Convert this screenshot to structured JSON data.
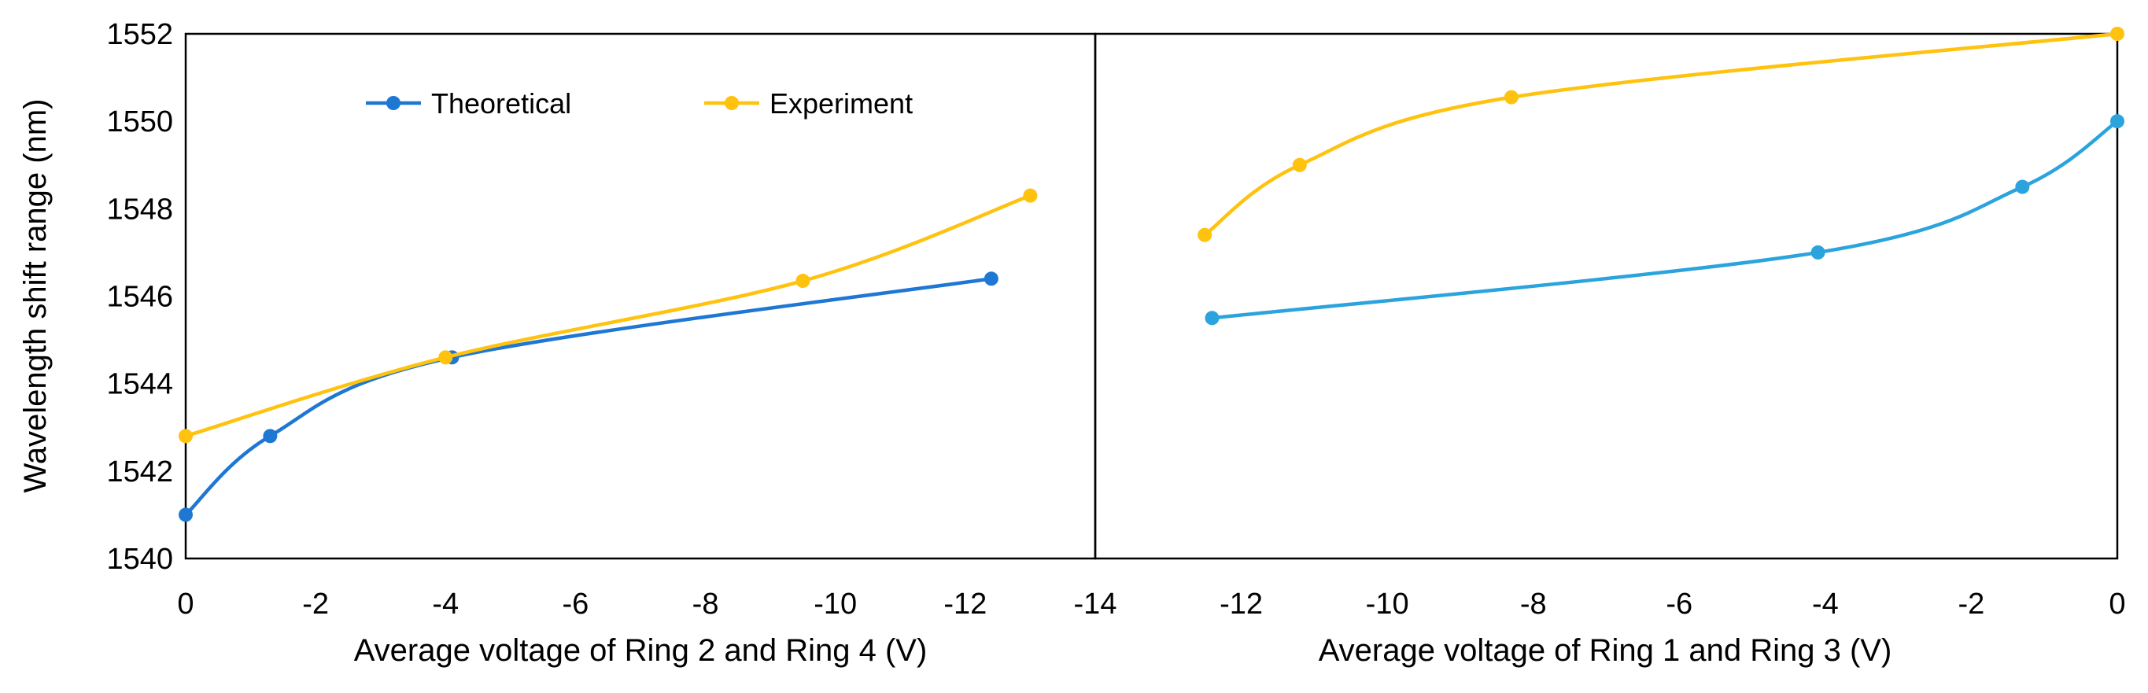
{
  "chart_data": {
    "type": "line",
    "ylabel": "Wavelength shift range (nm)",
    "ylim": [
      1540,
      1552
    ],
    "yticks": [
      "1540",
      "1542",
      "1544",
      "1546",
      "1548",
      "1550",
      "1552"
    ],
    "colors": {
      "theoretical_left": "#1f77d4",
      "theoretical_right": "#2ba3dd",
      "experiment": "#ffc20e"
    },
    "legend": [
      {
        "name": "Theoretical",
        "color": "#1f77d4"
      },
      {
        "name": "Experiment",
        "color": "#ffc20e"
      }
    ],
    "left_panel": {
      "xlabel": "Average voltage of Ring 2 and Ring 4 (V)",
      "xlim": [
        0,
        -14
      ],
      "xticks": [
        "0",
        "-2",
        "-4",
        "-6",
        "-8",
        "-10",
        "-12",
        "-14"
      ],
      "series": [
        {
          "name": "Theoretical",
          "x": [
            0,
            -1.3,
            -4.1,
            -12.4
          ],
          "y": [
            1541.0,
            1542.8,
            1544.6,
            1546.4
          ]
        },
        {
          "name": "Experiment",
          "x": [
            0,
            -4.0,
            -9.5,
            -13.0
          ],
          "y": [
            1542.8,
            1544.6,
            1546.35,
            1548.3
          ]
        }
      ]
    },
    "right_panel": {
      "xlabel": "Average voltage of Ring 1 and Ring 3 (V)",
      "xlim": [
        -14,
        0
      ],
      "xticks": [
        "-12",
        "-10",
        "-8",
        "-6",
        "-4",
        "-2",
        "0"
      ],
      "series": [
        {
          "name": "Theoretical",
          "x": [
            -12.4,
            -4.1,
            -1.3,
            0
          ],
          "y": [
            1545.5,
            1547.0,
            1548.5,
            1550.0
          ]
        },
        {
          "name": "Experiment",
          "x": [
            -12.5,
            -11.2,
            -8.3,
            0
          ],
          "y": [
            1547.4,
            1549.0,
            1550.55,
            1552.0
          ]
        }
      ]
    }
  }
}
